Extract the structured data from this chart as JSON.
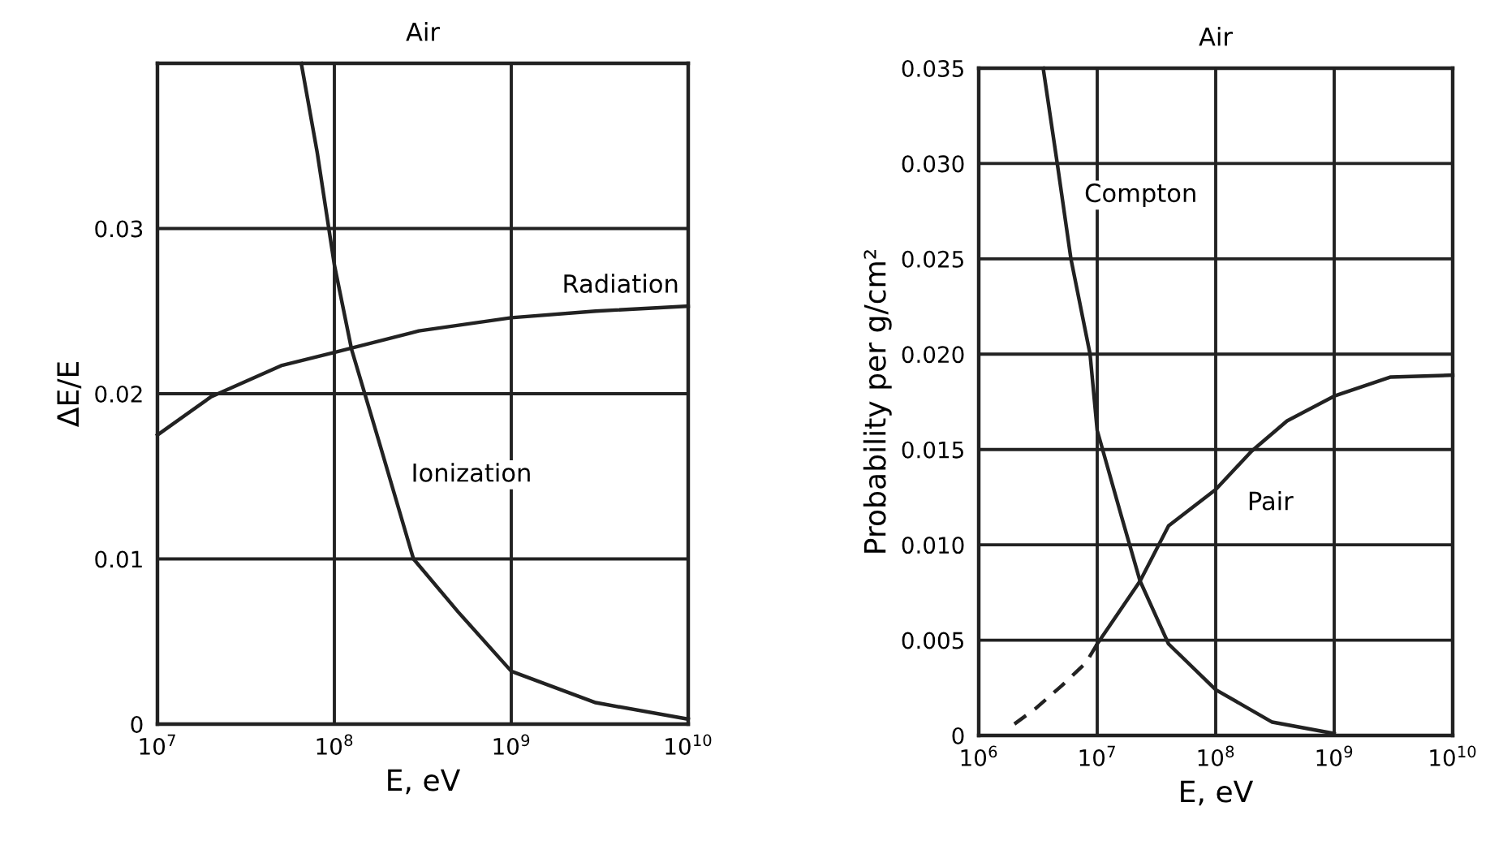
{
  "chart_data": [
    {
      "type": "line",
      "title": "Air",
      "xlabel": "E, eV",
      "ylabel": "ΔE/E",
      "log": "x",
      "grid": true,
      "legend": false,
      "xlim": [
        10000000,
        10000000000
      ],
      "xticks": [
        {
          "value": 10000000,
          "label": "10$^{7}$"
        },
        {
          "value": 100000000,
          "label": "10$^{8}$"
        },
        {
          "value": 1000000000,
          "label": "10$^{9}$"
        },
        {
          "value": 10000000000,
          "label": "10$^{10}$"
        }
      ],
      "ylim": [
        0,
        0.04
      ],
      "yticks": [
        0,
        0.01,
        0.02,
        0.03
      ],
      "series": [
        {
          "name": "Radiation",
          "color": "#222222",
          "x": [
            10000000,
            20000000,
            50000000,
            100000000,
            300000000,
            1000000000,
            3000000000,
            10000000000
          ],
          "values": [
            0.0175,
            0.0198,
            0.0217,
            0.0225,
            0.0238,
            0.0246,
            0.025,
            0.0253
          ]
        },
        {
          "name": "Ionization",
          "color": "#222222",
          "x": [
            65000000,
            80000000,
            100000000,
            125000000,
            180000000,
            280000000,
            500000000,
            1000000000,
            3000000000,
            10000000000
          ],
          "values": [
            0.04,
            0.0346,
            0.0278,
            0.0227,
            0.017,
            0.01,
            0.0068,
            0.0032,
            0.0013,
            0.0003
          ]
        }
      ]
    },
    {
      "type": "line",
      "title": "Air",
      "xlabel": "E, eV",
      "ylabel": "Probability per g/cm²",
      "log": "x",
      "grid": true,
      "legend": false,
      "xlim": [
        1000000,
        10000000000
      ],
      "xticks": [
        {
          "value": 1000000,
          "label": "10$^{6}$"
        },
        {
          "value": 10000000,
          "label": "10$^{7}$"
        },
        {
          "value": 100000000,
          "label": "10$^{8}$"
        },
        {
          "value": 1000000000,
          "label": "10$^{9}$"
        },
        {
          "value": 10000000000,
          "label": "10$^{10}$"
        }
      ],
      "ylim": [
        0,
        0.035
      ],
      "yticks": [
        0,
        {
          "value": 0.005,
          "label": "0.005"
        },
        {
          "value": 0.01,
          "label": "0.010"
        },
        {
          "value": 0.015,
          "label": "0.015"
        },
        {
          "value": 0.02,
          "label": "0.020"
        },
        {
          "value": 0.025,
          "label": "0.025"
        },
        {
          "value": 0.03,
          "label": "0.030"
        },
        {
          "value": 0.035,
          "label": "0.035"
        }
      ],
      "series": [
        {
          "name": "Compton",
          "color": "#222222",
          "x": [
            3500000,
            4600000,
            6000000,
            8700000,
            10000000,
            16000000,
            23000000,
            40000000,
            100000000,
            300000000,
            1000000000
          ],
          "values": [
            0.035,
            0.03,
            0.025,
            0.02,
            0.016,
            0.0115,
            0.0081,
            0.0048,
            0.0024,
            0.0007,
            0.0001
          ]
        },
        {
          "name": "Pair",
          "color": "#222222",
          "x": [
            10000000,
            23000000,
            40000000,
            100000000,
            200000000,
            400000000,
            1000000000,
            3000000000,
            10000000000
          ],
          "values": [
            0.0048,
            0.0081,
            0.011,
            0.0129,
            0.0149,
            0.0165,
            0.0178,
            0.0188,
            0.0189
          ]
        },
        {
          "color": "#222222",
          "line_style": "dashed",
          "x": [
            2000000,
            3000000,
            5000000,
            8000000,
            10000000
          ],
          "values": [
            0.0006,
            0.0014,
            0.0026,
            0.0038,
            0.0048
          ]
        }
      ]
    }
  ]
}
